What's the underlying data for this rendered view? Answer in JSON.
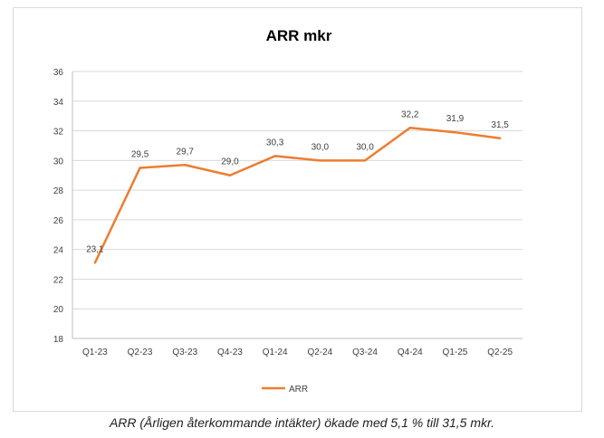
{
  "chart_data": {
    "type": "line",
    "title": "ARR mkr",
    "categories": [
      "Q1-23",
      "Q2-23",
      "Q3-23",
      "Q4-23",
      "Q1-24",
      "Q2-24",
      "Q3-24",
      "Q4-24",
      "Q1-25",
      "Q2-25"
    ],
    "series": [
      {
        "name": "ARR",
        "values": [
          23.1,
          29.5,
          29.7,
          29.0,
          30.3,
          30.0,
          30.0,
          32.2,
          31.9,
          31.5
        ],
        "labels": [
          "23,1",
          "29,5",
          "29,7",
          "29,0",
          "30,3",
          "30,0",
          "30,0",
          "32,2",
          "31,9",
          "31,5"
        ],
        "color": "#ed7d31"
      }
    ],
    "ylim": [
      18,
      36
    ],
    "ytick_values": [
      18,
      20,
      22,
      24,
      26,
      28,
      30,
      32,
      34,
      36
    ],
    "yticks": [
      "18",
      "20",
      "22",
      "24",
      "26",
      "28",
      "30",
      "32",
      "34",
      "36"
    ],
    "grid": true,
    "legend_position": "bottom",
    "colors": {
      "line": "#ed7d31",
      "grid": "#d9d9d9",
      "axis": "#bfbfbf",
      "text": "#404040"
    }
  },
  "caption": "ARR (Årligen återkommande intäkter) ökade med 5,1 % till 31,5 mkr."
}
